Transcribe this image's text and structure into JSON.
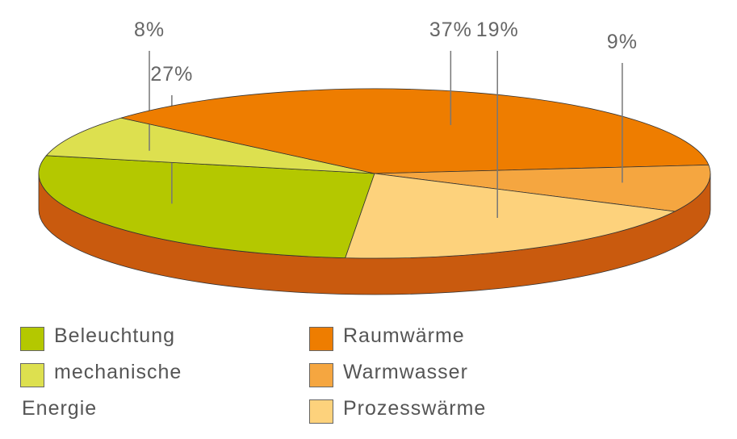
{
  "chart_data": {
    "type": "pie3d",
    "categories": [
      "Beleuchtung",
      "mechanische Energie",
      "Raumwärme",
      "Warmwasser",
      "Prozesswärme"
    ],
    "values": [
      27,
      8,
      37,
      9,
      19
    ],
    "value_labels": [
      "27%",
      "8%",
      "37%",
      "9%",
      "19%"
    ],
    "colors": [
      "#b4c800",
      "#dde04f",
      "#ee7d00",
      "#f5a640",
      "#fdd27c"
    ],
    "side_color": "#c95a0e"
  }
}
